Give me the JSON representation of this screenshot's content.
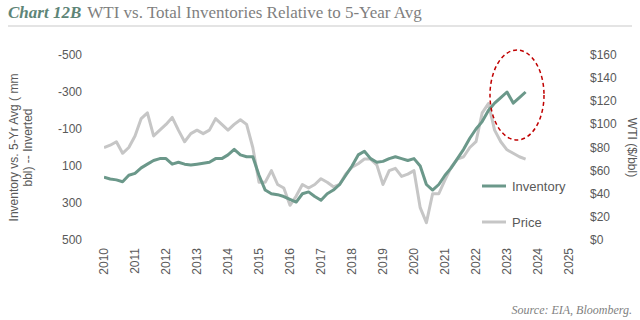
{
  "chart_data": {
    "type": "line",
    "chart_label": "Chart 12B",
    "title": "WTI vs. Total Inventories Relative to 5-Year Avg",
    "ylabel": [
      "Inventory vs. 5-Yr Avg ( mm",
      "bbl) -- Inverted"
    ],
    "y2label": "WTI ($/bbl)",
    "source": "Source: EIA, Bloomberg.",
    "x": [
      2010.0,
      2010.2,
      2010.4,
      2010.6,
      2010.8,
      2011.0,
      2011.2,
      2011.4,
      2011.6,
      2011.8,
      2012.0,
      2012.2,
      2012.4,
      2012.6,
      2012.8,
      2013.0,
      2013.2,
      2013.4,
      2013.6,
      2013.8,
      2014.0,
      2014.2,
      2014.4,
      2014.6,
      2014.8,
      2015.0,
      2015.2,
      2015.4,
      2015.6,
      2015.8,
      2016.0,
      2016.2,
      2016.4,
      2016.6,
      2016.8,
      2017.0,
      2017.2,
      2017.4,
      2017.6,
      2017.8,
      2018.0,
      2018.2,
      2018.4,
      2018.6,
      2018.8,
      2019.0,
      2019.2,
      2019.4,
      2019.6,
      2019.8,
      2020.0,
      2020.2,
      2020.4,
      2020.6,
      2020.8,
      2021.0,
      2021.2,
      2021.4,
      2021.6,
      2021.8,
      2022.0,
      2022.2,
      2022.4,
      2022.6,
      2022.8,
      2023.0,
      2023.2,
      2023.4,
      2023.6
    ],
    "series": [
      {
        "name": "Inventory",
        "color": "#6b988a",
        "axis": "y",
        "values": [
          160,
          170,
          175,
          185,
          150,
          140,
          110,
          90,
          70,
          60,
          60,
          90,
          80,
          90,
          95,
          90,
          85,
          80,
          60,
          60,
          40,
          10,
          40,
          50,
          50,
          150,
          230,
          250,
          255,
          265,
          280,
          295,
          250,
          240,
          265,
          285,
          250,
          230,
          200,
          150,
          100,
          40,
          20,
          60,
          80,
          75,
          60,
          50,
          60,
          70,
          60,
          100,
          200,
          230,
          200,
          150,
          110,
          60,
          10,
          -50,
          -100,
          -140,
          -200,
          -240,
          -270,
          -300,
          -240,
          -270,
          -300
        ]
      },
      {
        "name": "Price",
        "color": "#c6c6c6",
        "axis": "y2",
        "values": [
          80,
          82,
          85,
          75,
          80,
          90,
          105,
          110,
          90,
          95,
          100,
          106,
          95,
          85,
          92,
          95,
          92,
          95,
          105,
          100,
          95,
          100,
          104,
          100,
          80,
          50,
          50,
          60,
          48,
          45,
          30,
          38,
          48,
          45,
          48,
          53,
          50,
          46,
          48,
          57,
          63,
          66,
          70,
          70,
          65,
          48,
          60,
          62,
          55,
          57,
          60,
          28,
          15,
          40,
          40,
          52,
          63,
          70,
          72,
          80,
          85,
          110,
          118,
          95,
          85,
          78,
          75,
          72,
          70
        ]
      }
    ],
    "xlim": [
      2010,
      2025
    ],
    "xticks": [
      2010,
      2011,
      2012,
      2013,
      2014,
      2015,
      2016,
      2017,
      2018,
      2019,
      2020,
      2021,
      2022,
      2023,
      2024,
      2025
    ],
    "ylim": [
      500,
      -500
    ],
    "yticks": [
      -500,
      -300,
      -100,
      100,
      300,
      500
    ],
    "y2lim": [
      0,
      160
    ],
    "y2ticks": [
      {
        "value": 0,
        "label": "$0"
      },
      {
        "value": 20,
        "label": "$20"
      },
      {
        "value": 40,
        "label": "$40"
      },
      {
        "value": 60,
        "label": "$60"
      },
      {
        "value": 80,
        "label": "$80"
      },
      {
        "value": 100,
        "label": "$100"
      },
      {
        "value": 120,
        "label": "$120"
      },
      {
        "value": 140,
        "label": "$140"
      },
      {
        "value": 160,
        "label": "$160"
      }
    ],
    "legend": "lower right",
    "grid": false
  }
}
